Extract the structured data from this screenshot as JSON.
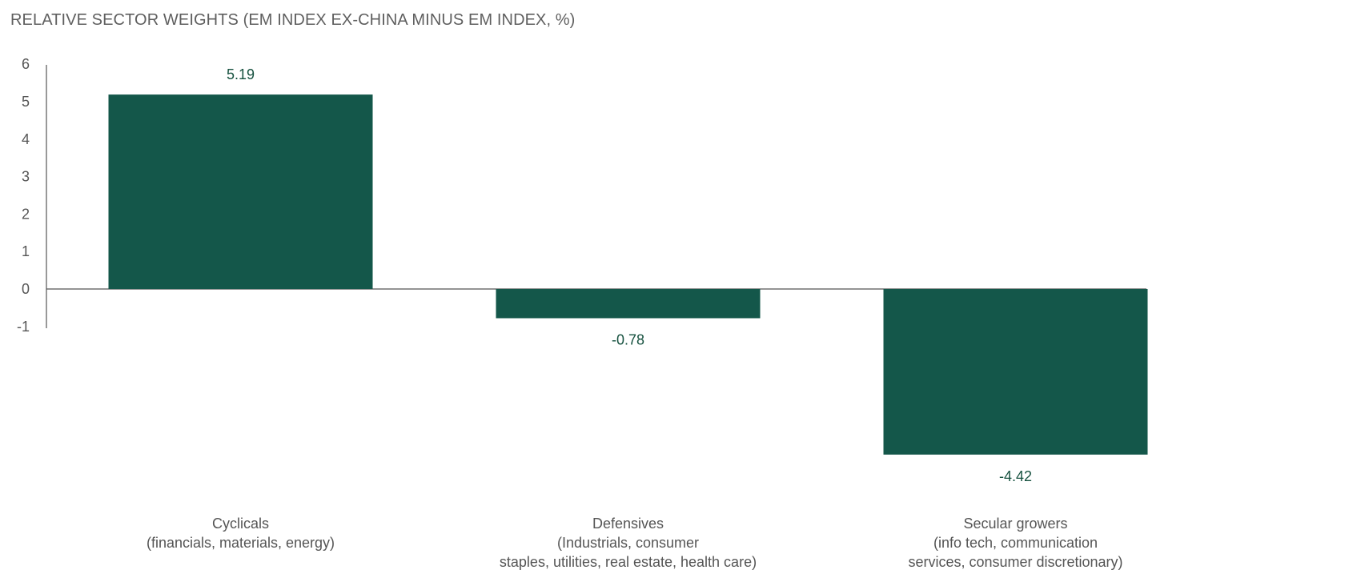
{
  "chart_data": {
    "type": "bar",
    "title": "RELATIVE SECTOR WEIGHTS (EM INDEX EX-CHINA MINUS EM INDEX, %)",
    "xlabel": "",
    "ylabel": "",
    "ylim": [
      -1,
      6
    ],
    "yticks": [
      "6",
      "5",
      "4",
      "3",
      "2",
      "1",
      "0",
      "-1"
    ],
    "bar_color": "#14574a",
    "label_color": "#16513f",
    "grid": false,
    "legend": "none",
    "categories": [
      [
        "Cyclicals",
        "(financials, materials, energy)"
      ],
      [
        "Defensives",
        "(Industrials, consumer",
        "staples, utilities, real estate, health care)"
      ],
      [
        "Secular growers",
        "(info tech, communication",
        "services, consumer discretionary)"
      ]
    ],
    "values": [
      5.19,
      -0.78,
      -4.42
    ],
    "value_labels": [
      "5.19",
      "-0.78",
      "-4.42"
    ]
  }
}
